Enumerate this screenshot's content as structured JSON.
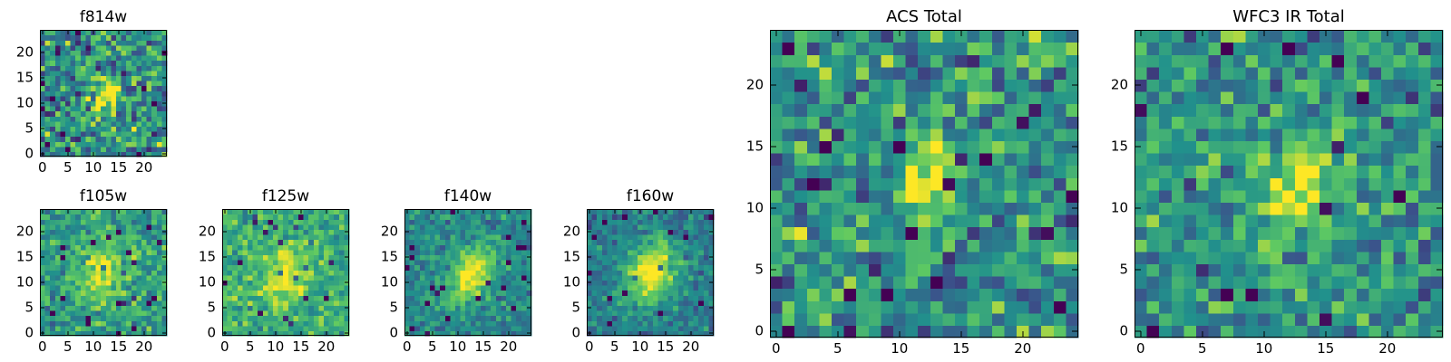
{
  "colormap": "viridis",
  "colors": {
    "frame": "#000000",
    "background": "#ffffff",
    "viridis_stops": [
      "#440154",
      "#3b528b",
      "#21918c",
      "#5ec962",
      "#fde725"
    ]
  },
  "chart_data": [
    {
      "type": "heatmap",
      "title": "f814w",
      "xlabel": "",
      "ylabel": "",
      "grid_size": [
        25,
        25
      ],
      "xlim": [
        -0.5,
        24.5
      ],
      "ylim": [
        -0.5,
        24.5
      ],
      "xticks": [
        "0",
        "5",
        "10",
        "15",
        "20"
      ],
      "yticks": [
        "0",
        "5",
        "10",
        "15",
        "20"
      ],
      "noise": 0.42,
      "background_level": 0.48,
      "source": {
        "x": 12.5,
        "y": 11.5,
        "sigma_x": 2.0,
        "sigma_y": 3.2,
        "angle_deg": -25,
        "amplitude": 0.5
      },
      "seed": 11
    },
    {
      "type": "heatmap",
      "title": "f105w",
      "xlabel": "",
      "ylabel": "",
      "grid_size": [
        25,
        25
      ],
      "xlim": [
        -0.5,
        24.5
      ],
      "ylim": [
        -0.5,
        24.5
      ],
      "xticks": [
        "0",
        "5",
        "10",
        "15",
        "20"
      ],
      "yticks": [
        "0",
        "5",
        "10",
        "15",
        "20"
      ],
      "noise": 0.26,
      "background_level": 0.55,
      "source": {
        "x": 12.0,
        "y": 12.0,
        "sigma_x": 3.2,
        "sigma_y": 4.0,
        "angle_deg": -20,
        "amplitude": 0.4
      },
      "seed": 23
    },
    {
      "type": "heatmap",
      "title": "f125w",
      "xlabel": "",
      "ylabel": "",
      "grid_size": [
        25,
        25
      ],
      "xlim": [
        -0.5,
        24.5
      ],
      "ylim": [
        -0.5,
        24.5
      ],
      "xticks": [
        "0",
        "5",
        "10",
        "15",
        "20"
      ],
      "yticks": [
        "0",
        "5",
        "10",
        "15",
        "20"
      ],
      "noise": 0.24,
      "background_level": 0.62,
      "source": {
        "x": 12.0,
        "y": 11.5,
        "sigma_x": 3.5,
        "sigma_y": 4.2,
        "angle_deg": -20,
        "amplitude": 0.32
      },
      "seed": 37
    },
    {
      "type": "heatmap",
      "title": "f140w",
      "xlabel": "",
      "ylabel": "",
      "grid_size": [
        25,
        25
      ],
      "xlim": [
        -0.5,
        24.5
      ],
      "ylim": [
        -0.5,
        24.5
      ],
      "xticks": [
        "0",
        "5",
        "10",
        "15",
        "20"
      ],
      "yticks": [
        "0",
        "5",
        "10",
        "15",
        "20"
      ],
      "noise": 0.2,
      "background_level": 0.46,
      "source": {
        "x": 12.5,
        "y": 11.5,
        "sigma_x": 2.6,
        "sigma_y": 4.5,
        "angle_deg": -35,
        "amplitude": 0.55
      },
      "seed": 41
    },
    {
      "type": "heatmap",
      "title": "f160w",
      "xlabel": "",
      "ylabel": "",
      "grid_size": [
        25,
        25
      ],
      "xlim": [
        -0.5,
        24.5
      ],
      "ylim": [
        -0.5,
        24.5
      ],
      "xticks": [
        "0",
        "5",
        "10",
        "15",
        "20"
      ],
      "yticks": [
        "0",
        "5",
        "10",
        "15",
        "20"
      ],
      "noise": 0.2,
      "background_level": 0.42,
      "source": {
        "x": 12.0,
        "y": 12.0,
        "sigma_x": 3.2,
        "sigma_y": 4.6,
        "angle_deg": -25,
        "amplitude": 0.6
      },
      "seed": 53
    },
    {
      "type": "heatmap",
      "title": "ACS Total",
      "xlabel": "",
      "ylabel": "",
      "grid_size": [
        25,
        25
      ],
      "xlim": [
        -0.5,
        24.5
      ],
      "ylim": [
        -0.5,
        24.5
      ],
      "xticks": [
        "0",
        "5",
        "10",
        "15",
        "20"
      ],
      "yticks": [
        "0",
        "5",
        "10",
        "15",
        "20"
      ],
      "noise": 0.38,
      "background_level": 0.52,
      "source": {
        "x": 12.5,
        "y": 12.0,
        "sigma_x": 1.6,
        "sigma_y": 2.6,
        "angle_deg": -10,
        "amplitude": 0.48
      },
      "seed": 67
    },
    {
      "type": "heatmap",
      "title": "WFC3 IR Total",
      "xlabel": "",
      "ylabel": "",
      "grid_size": [
        25,
        25
      ],
      "xlim": [
        -0.5,
        24.5
      ],
      "ylim": [
        -0.5,
        24.5
      ],
      "xticks": [
        "0",
        "5",
        "10",
        "15",
        "20"
      ],
      "yticks": [
        "0",
        "5",
        "10",
        "15",
        "20"
      ],
      "noise": 0.32,
      "background_level": 0.52,
      "source": {
        "x": 13.0,
        "y": 12.0,
        "sigma_x": 1.7,
        "sigma_y": 2.8,
        "angle_deg": -10,
        "amplitude": 0.48
      },
      "seed": 79
    }
  ]
}
